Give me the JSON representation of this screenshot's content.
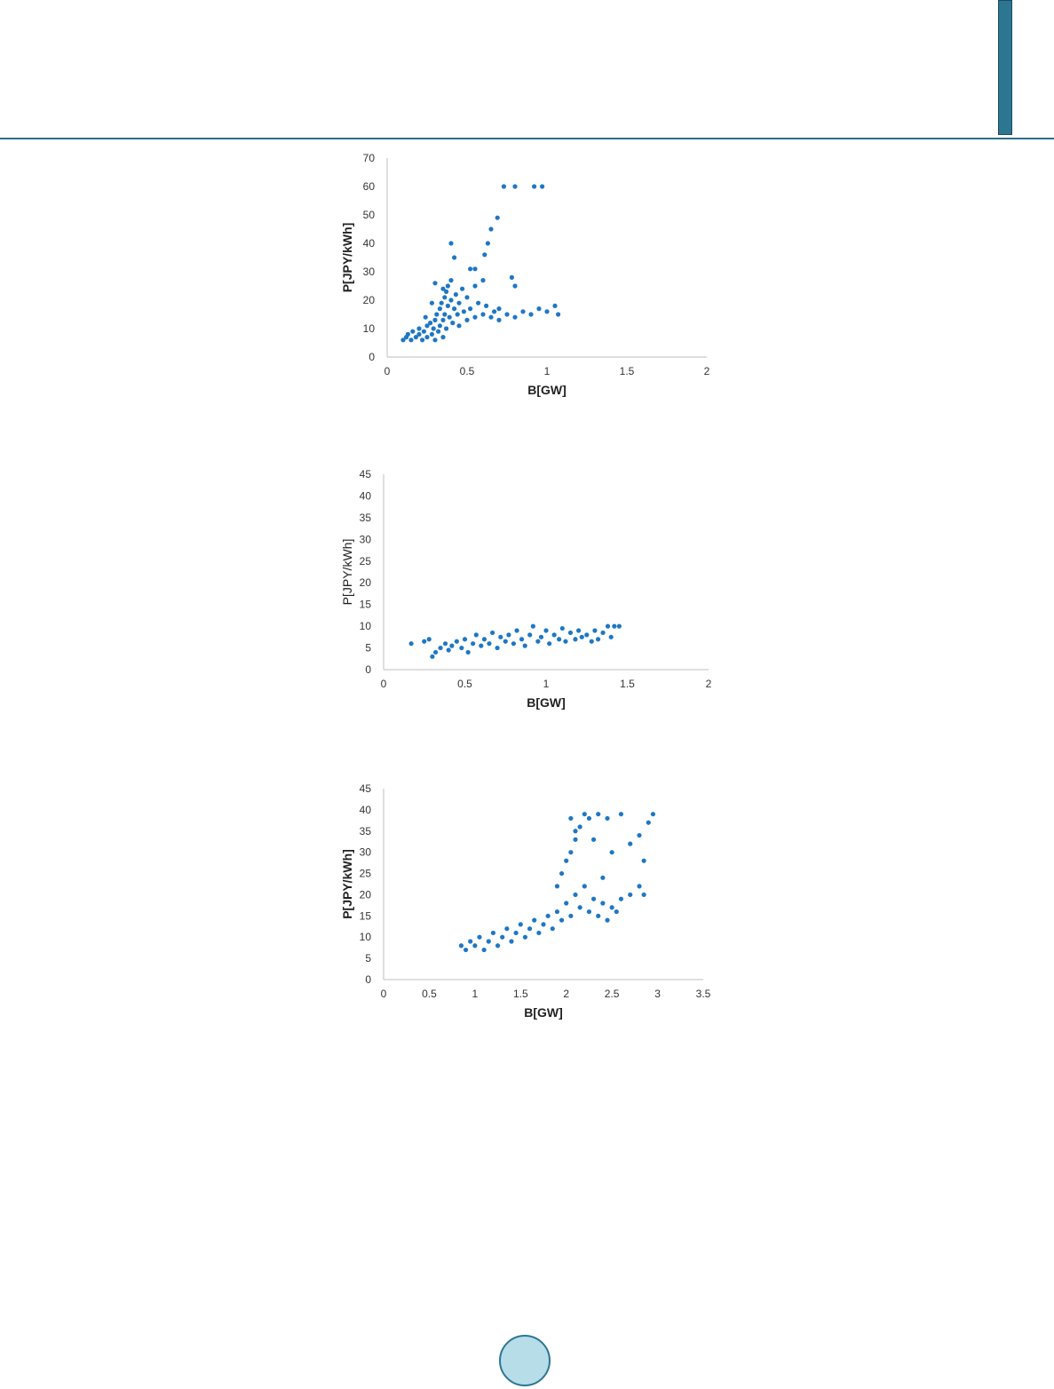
{
  "colors": {
    "accent": "#2d7691",
    "marker": "#1f77c4",
    "axis": "#bfbfbf"
  },
  "chart_data": [
    {
      "type": "scatter",
      "xlabel": "B[GW]",
      "ylabel": "P[JPY/kWh]",
      "xlim": [
        0,
        2
      ],
      "ylim": [
        0,
        70
      ],
      "xticks": [
        "0",
        "0.5",
        "1",
        "1.5",
        "2"
      ],
      "yticks": [
        "0",
        "10",
        "20",
        "30",
        "40",
        "50",
        "60",
        "70"
      ],
      "series": [
        {
          "points": [
            [
              0.1,
              6
            ],
            [
              0.12,
              7
            ],
            [
              0.13,
              8
            ],
            [
              0.15,
              6
            ],
            [
              0.16,
              9
            ],
            [
              0.18,
              7
            ],
            [
              0.2,
              8
            ],
            [
              0.2,
              10
            ],
            [
              0.22,
              6
            ],
            [
              0.23,
              9
            ],
            [
              0.25,
              11
            ],
            [
              0.25,
              7
            ],
            [
              0.27,
              12
            ],
            [
              0.28,
              8
            ],
            [
              0.29,
              10
            ],
            [
              0.3,
              13
            ],
            [
              0.3,
              6
            ],
            [
              0.31,
              15
            ],
            [
              0.32,
              9
            ],
            [
              0.33,
              17
            ],
            [
              0.33,
              11
            ],
            [
              0.34,
              19
            ],
            [
              0.35,
              13
            ],
            [
              0.35,
              7
            ],
            [
              0.36,
              21
            ],
            [
              0.36,
              15
            ],
            [
              0.37,
              23
            ],
            [
              0.37,
              10
            ],
            [
              0.38,
              25
            ],
            [
              0.38,
              18
            ],
            [
              0.39,
              14
            ],
            [
              0.4,
              20
            ],
            [
              0.4,
              27
            ],
            [
              0.41,
              12
            ],
            [
              0.42,
              17
            ],
            [
              0.43,
              22
            ],
            [
              0.44,
              15
            ],
            [
              0.45,
              19
            ],
            [
              0.45,
              11
            ],
            [
              0.47,
              24
            ],
            [
              0.48,
              16
            ],
            [
              0.5,
              13
            ],
            [
              0.5,
              21
            ],
            [
              0.52,
              17
            ],
            [
              0.55,
              25
            ],
            [
              0.55,
              14
            ],
            [
              0.57,
              19
            ],
            [
              0.6,
              15
            ],
            [
              0.6,
              27
            ],
            [
              0.62,
              18
            ],
            [
              0.65,
              14
            ],
            [
              0.67,
              16
            ],
            [
              0.7,
              13
            ],
            [
              0.7,
              17
            ],
            [
              0.75,
              15
            ],
            [
              0.8,
              14
            ],
            [
              0.85,
              16
            ],
            [
              0.9,
              15
            ],
            [
              0.95,
              17
            ],
            [
              1.0,
              16
            ],
            [
              1.05,
              18
            ],
            [
              1.07,
              15
            ],
            [
              0.4,
              40
            ],
            [
              0.42,
              35
            ],
            [
              0.52,
              31
            ],
            [
              0.55,
              31
            ],
            [
              0.61,
              36
            ],
            [
              0.63,
              40
            ],
            [
              0.65,
              45
            ],
            [
              0.69,
              49
            ],
            [
              0.73,
              60
            ],
            [
              0.8,
              60
            ],
            [
              0.92,
              60
            ],
            [
              0.97,
              60
            ],
            [
              0.78,
              28
            ],
            [
              0.8,
              25
            ],
            [
              0.3,
              26
            ],
            [
              0.35,
              24
            ],
            [
              0.28,
              19
            ],
            [
              0.24,
              14
            ]
          ]
        }
      ]
    },
    {
      "type": "scatter",
      "xlabel": "B[GW]",
      "ylabel": "P[JPY/kWh]",
      "xlim": [
        0,
        2
      ],
      "ylim": [
        0,
        45
      ],
      "xticks": [
        "0",
        "0.5",
        "1",
        "1.5",
        "2"
      ],
      "yticks": [
        "0",
        "5",
        "10",
        "15",
        "20",
        "25",
        "30",
        "35",
        "40",
        "45"
      ],
      "series": [
        {
          "points": [
            [
              0.17,
              6
            ],
            [
              0.25,
              6.5
            ],
            [
              0.28,
              7
            ],
            [
              0.3,
              3
            ],
            [
              0.32,
              4
            ],
            [
              0.35,
              5
            ],
            [
              0.38,
              6
            ],
            [
              0.4,
              4.5
            ],
            [
              0.42,
              5.5
            ],
            [
              0.45,
              6.5
            ],
            [
              0.48,
              5
            ],
            [
              0.5,
              7
            ],
            [
              0.52,
              4
            ],
            [
              0.55,
              6
            ],
            [
              0.57,
              8
            ],
            [
              0.6,
              5.5
            ],
            [
              0.62,
              7
            ],
            [
              0.65,
              6
            ],
            [
              0.67,
              8.5
            ],
            [
              0.7,
              5
            ],
            [
              0.72,
              7.5
            ],
            [
              0.75,
              6.5
            ],
            [
              0.77,
              8
            ],
            [
              0.8,
              6
            ],
            [
              0.82,
              9
            ],
            [
              0.85,
              7
            ],
            [
              0.87,
              5.5
            ],
            [
              0.9,
              8
            ],
            [
              0.92,
              10
            ],
            [
              0.95,
              6.5
            ],
            [
              0.97,
              7.5
            ],
            [
              1.0,
              9
            ],
            [
              1.02,
              6
            ],
            [
              1.05,
              8
            ],
            [
              1.08,
              7
            ],
            [
              1.1,
              9.5
            ],
            [
              1.12,
              6.5
            ],
            [
              1.15,
              8.5
            ],
            [
              1.18,
              7
            ],
            [
              1.2,
              9
            ],
            [
              1.22,
              7.5
            ],
            [
              1.25,
              8
            ],
            [
              1.28,
              6.5
            ],
            [
              1.3,
              9
            ],
            [
              1.32,
              7
            ],
            [
              1.35,
              8.5
            ],
            [
              1.38,
              10
            ],
            [
              1.4,
              7.5
            ],
            [
              1.42,
              10
            ],
            [
              1.45,
              10
            ]
          ]
        }
      ]
    },
    {
      "type": "scatter",
      "xlabel": "B[GW]",
      "ylabel": "P[JPY/kWh]",
      "xlim": [
        0,
        3.5
      ],
      "ylim": [
        0,
        45
      ],
      "xticks": [
        "0",
        "0.5",
        "1",
        "1.5",
        "2",
        "2.5",
        "3",
        "3.5"
      ],
      "yticks": [
        "0",
        "5",
        "10",
        "15",
        "20",
        "25",
        "30",
        "35",
        "40",
        "45"
      ],
      "series": [
        {
          "points": [
            [
              0.85,
              8
            ],
            [
              0.9,
              7
            ],
            [
              0.95,
              9
            ],
            [
              1.0,
              8
            ],
            [
              1.05,
              10
            ],
            [
              1.1,
              7
            ],
            [
              1.15,
              9
            ],
            [
              1.2,
              11
            ],
            [
              1.25,
              8
            ],
            [
              1.3,
              10
            ],
            [
              1.35,
              12
            ],
            [
              1.4,
              9
            ],
            [
              1.45,
              11
            ],
            [
              1.5,
              13
            ],
            [
              1.55,
              10
            ],
            [
              1.6,
              12
            ],
            [
              1.65,
              14
            ],
            [
              1.7,
              11
            ],
            [
              1.75,
              13
            ],
            [
              1.8,
              15
            ],
            [
              1.85,
              12
            ],
            [
              1.9,
              16
            ],
            [
              1.95,
              14
            ],
            [
              2.0,
              18
            ],
            [
              2.05,
              15
            ],
            [
              2.1,
              20
            ],
            [
              2.15,
              17
            ],
            [
              2.2,
              22
            ],
            [
              2.25,
              16
            ],
            [
              2.3,
              19
            ],
            [
              2.35,
              15
            ],
            [
              2.4,
              18
            ],
            [
              2.45,
              14
            ],
            [
              2.5,
              17
            ],
            [
              2.55,
              16
            ],
            [
              2.6,
              19
            ],
            [
              2.7,
              20
            ],
            [
              2.8,
              22
            ],
            [
              2.85,
              20
            ],
            [
              1.9,
              22
            ],
            [
              1.95,
              25
            ],
            [
              2.0,
              28
            ],
            [
              2.05,
              30
            ],
            [
              2.1,
              33
            ],
            [
              2.15,
              36
            ],
            [
              2.2,
              39
            ],
            [
              2.25,
              38
            ],
            [
              2.35,
              39
            ],
            [
              2.45,
              38
            ],
            [
              2.6,
              39
            ],
            [
              2.05,
              38
            ],
            [
              2.1,
              35
            ],
            [
              2.3,
              33
            ],
            [
              2.5,
              30
            ],
            [
              2.7,
              32
            ],
            [
              2.85,
              28
            ],
            [
              2.9,
              37
            ],
            [
              2.95,
              39
            ],
            [
              2.8,
              34
            ],
            [
              2.4,
              24
            ]
          ]
        }
      ]
    }
  ]
}
